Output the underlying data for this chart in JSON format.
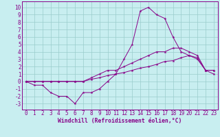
{
  "xlabel": "Windchill (Refroidissement éolien,°C)",
  "x_ticks": [
    0,
    1,
    2,
    3,
    4,
    5,
    6,
    7,
    8,
    9,
    10,
    11,
    12,
    13,
    14,
    15,
    16,
    17,
    18,
    19,
    20,
    21,
    22,
    23
  ],
  "y_ticks": [
    -3,
    -2,
    -1,
    0,
    1,
    2,
    3,
    4,
    5,
    6,
    7,
    8,
    9,
    10
  ],
  "ylim": [
    -3.8,
    10.8
  ],
  "xlim": [
    -0.5,
    23.5
  ],
  "bg_color": "#c8eef0",
  "line_color": "#880088",
  "grid_color": "#99cccc",
  "line1_x": [
    0,
    1,
    2,
    3,
    4,
    5,
    6,
    7,
    8,
    9,
    10,
    11,
    12,
    13,
    14,
    15,
    16,
    17,
    18,
    19,
    20,
    21,
    22,
    23
  ],
  "line1_y": [
    0,
    -0.5,
    -0.5,
    -1.5,
    -2,
    -2,
    -3,
    -1.5,
    -1.5,
    -1,
    0,
    1,
    3,
    5,
    9.5,
    10,
    9,
    8.5,
    6,
    4,
    3.5,
    3,
    1.5,
    1
  ],
  "line2_x": [
    0,
    1,
    2,
    3,
    4,
    5,
    6,
    7,
    8,
    9,
    10,
    11,
    12,
    13,
    14,
    15,
    16,
    17,
    18,
    19,
    20,
    21,
    22,
    23
  ],
  "line2_y": [
    0,
    0,
    0,
    0,
    0,
    0,
    0,
    0,
    0.5,
    1,
    1.5,
    1.5,
    2,
    2.5,
    3,
    3.5,
    4,
    4,
    4.5,
    4.5,
    4,
    3.5,
    1.5,
    1.5
  ],
  "line3_x": [
    0,
    1,
    2,
    3,
    4,
    5,
    6,
    7,
    8,
    9,
    10,
    11,
    12,
    13,
    14,
    15,
    16,
    17,
    18,
    19,
    20,
    21,
    22,
    23
  ],
  "line3_y": [
    0,
    0,
    0,
    0,
    0,
    0,
    0,
    0,
    0.3,
    0.5,
    0.8,
    1,
    1.2,
    1.5,
    1.8,
    2,
    2.3,
    2.7,
    2.8,
    3.2,
    3.5,
    3.2,
    1.5,
    1.5
  ]
}
